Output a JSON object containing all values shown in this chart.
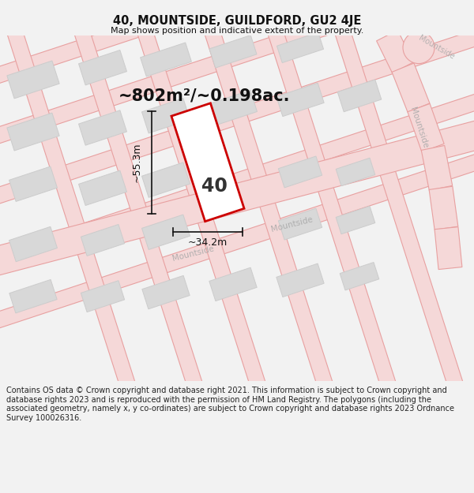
{
  "title": "40, MOUNTSIDE, GUILDFORD, GU2 4JE",
  "subtitle": "Map shows position and indicative extent of the property.",
  "area_text": "~802m²/~0.198ac.",
  "label_40": "40",
  "dim_width": "~34.2m",
  "dim_height": "~55.3m",
  "footer": "Contains OS data © Crown copyright and database right 2021. This information is subject to Crown copyright and database rights 2023 and is reproduced with the permission of HM Land Registry. The polygons (including the associated geometry, namely x, y co-ordinates) are subject to Crown copyright and database rights 2023 Ordnance Survey 100026316.",
  "bg_color": "#f2f2f2",
  "map_bg": "#ffffff",
  "road_fill": "#f5d8d8",
  "road_edge": "#e8a0a0",
  "plot_edge_color": "#cc0000",
  "building_color": "#d8d8d8",
  "building_edge": "#cccccc",
  "title_color": "#111111",
  "footer_color": "#222222",
  "dim_color": "#111111",
  "road_label_color": "#aaaaaa",
  "mountside_label": "Mountside"
}
